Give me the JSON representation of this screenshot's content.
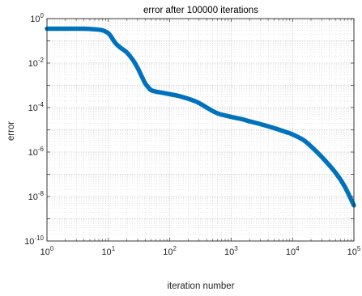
{
  "chart_data": {
    "type": "line",
    "title": "error after 100000 iterations",
    "xlabel": "iteration number",
    "ylabel": "error",
    "xscale": "log",
    "yscale": "log",
    "xlim": [
      1,
      100000
    ],
    "ylim": [
      1e-10,
      1
    ],
    "grid": true,
    "minor_grid": true,
    "line_color": "#0072BD",
    "x_ticks": [
      {
        "value": 1,
        "base": "10",
        "exp": "0"
      },
      {
        "value": 10,
        "base": "10",
        "exp": "1"
      },
      {
        "value": 100,
        "base": "10",
        "exp": "2"
      },
      {
        "value": 1000,
        "base": "10",
        "exp": "3"
      },
      {
        "value": 10000,
        "base": "10",
        "exp": "4"
      },
      {
        "value": 100000,
        "base": "10",
        "exp": "5"
      }
    ],
    "y_ticks": [
      {
        "value": 1,
        "base": "10",
        "exp": "0"
      },
      {
        "value": 0.01,
        "base": "10",
        "exp": "-2"
      },
      {
        "value": 0.0001,
        "base": "10",
        "exp": "-4"
      },
      {
        "value": 1e-06,
        "base": "10",
        "exp": "-6"
      },
      {
        "value": 1e-08,
        "base": "10",
        "exp": "-8"
      },
      {
        "value": 1e-10,
        "base": "10",
        "exp": "-10"
      }
    ],
    "series": [
      {
        "x": [
          1,
          2,
          4,
          6,
          8,
          9,
          10,
          11,
          12,
          13,
          14,
          15,
          17,
          20,
          25,
          30,
          35,
          40,
          45,
          50,
          60,
          70,
          80,
          100,
          130,
          160,
          200,
          250,
          300,
          400,
          500,
          600,
          700,
          800,
          1000,
          1500,
          2000,
          3000,
          5000,
          8000,
          10000,
          15000,
          20000,
          30000,
          50000,
          70000,
          100000
        ],
        "y": [
          0.35,
          0.35,
          0.35,
          0.33,
          0.3,
          0.26,
          0.22,
          0.16,
          0.11,
          0.08,
          0.065,
          0.055,
          0.042,
          0.03,
          0.014,
          0.006,
          0.0025,
          0.0012,
          0.0008,
          0.0006,
          0.00052,
          0.00048,
          0.00045,
          0.0004,
          0.00035,
          0.0003,
          0.00025,
          0.0002,
          0.00016,
          0.0001,
          7e-05,
          5.5e-05,
          4.8e-05,
          4.4e-05,
          3.8e-05,
          3e-05,
          2.4e-05,
          1.8e-05,
          1.2e-05,
          7.8e-06,
          6.2e-06,
          3.5e-06,
          1.8e-06,
          6e-07,
          1.2e-07,
          3e-08,
          4e-09
        ]
      }
    ]
  }
}
